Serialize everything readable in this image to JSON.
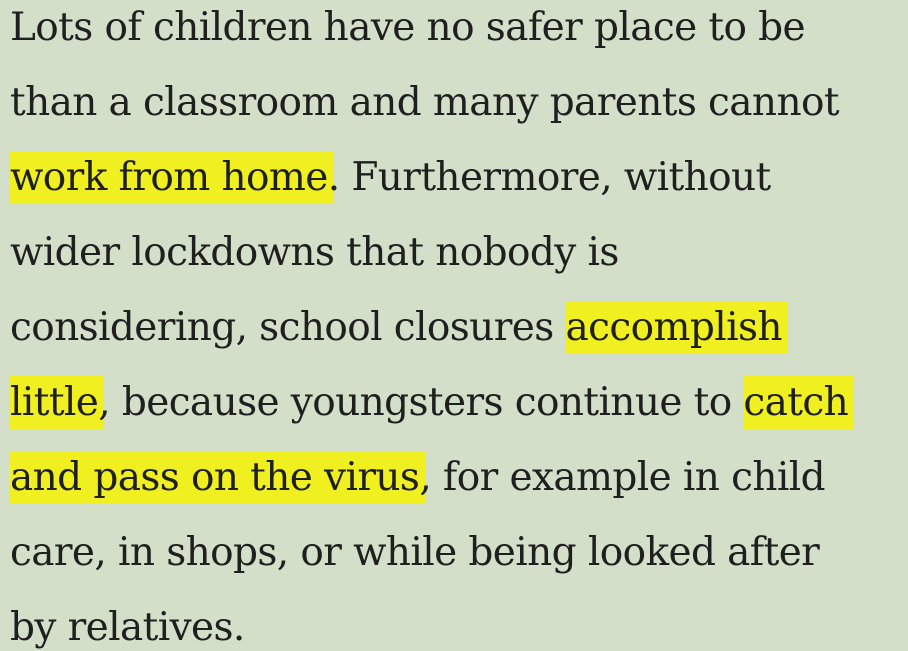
{
  "paragraph": {
    "lines": [
      [
        "Lots of children have no safer place to be"
      ],
      [
        "than a classroom and many parents cannot"
      ],
      [
        "work from home",
        ". Furthermore, without"
      ],
      [
        "wider lockdowns that nobody is"
      ],
      [
        "considering, school closures ",
        "accomplish"
      ],
      [
        "little",
        ", because youngsters continue to ",
        "catch"
      ],
      [
        "and pass on the virus",
        ", for example in child"
      ],
      [
        "care, in shops, or while being looked after"
      ],
      [
        "by relatives."
      ]
    ]
  },
  "highlight_color": "#f0f020",
  "background_color": "#d3dfc9"
}
